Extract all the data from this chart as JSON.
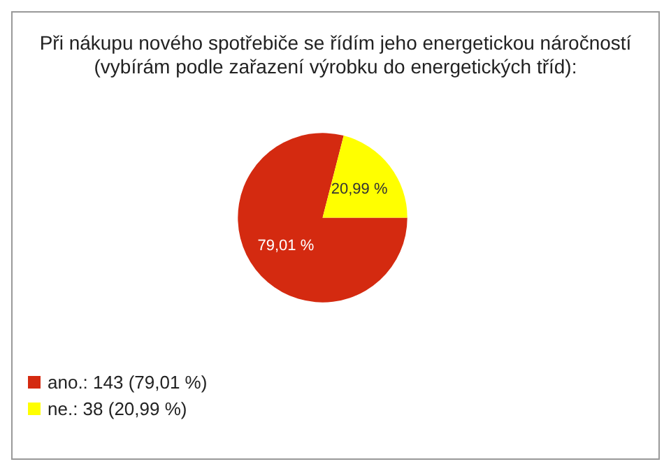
{
  "chart_data": {
    "type": "pie",
    "title": "Při nákupu nového spotřebiče se řídím jeho energetickou náročností\n(vybírám podle zařazení výrobku do energetických tříd):",
    "categories": [
      "ano.: 143 (79,01 %)",
      "ne.: 38 (20,99 %)"
    ],
    "values": [
      79.01,
      20.99
    ],
    "colors": [
      "#d42a10",
      "#ffff00"
    ],
    "value_labels": [
      "79,01 %",
      "20,99 %"
    ],
    "legend": "bottom left"
  }
}
